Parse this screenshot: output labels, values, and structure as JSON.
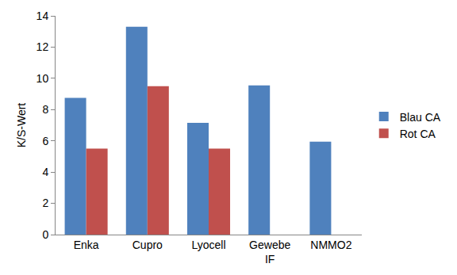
{
  "chart_data": {
    "type": "bar",
    "categories": [
      "Enka",
      "Cupro",
      "Lyocell",
      "Gewebe IF",
      "NMMO2"
    ],
    "series": [
      {
        "name": "Blau CA",
        "color": "#4f81bd",
        "values": [
          8.75,
          13.3,
          7.15,
          9.55,
          5.95
        ]
      },
      {
        "name": "Rot CA",
        "color": "#c0504d",
        "values": [
          5.5,
          9.5,
          5.5,
          null,
          null
        ]
      }
    ],
    "y_label": "K/S-Wert",
    "ylim": [
      0,
      14
    ],
    "yticks": [
      0,
      2,
      4,
      6,
      8,
      10,
      12,
      14
    ],
    "grid": false,
    "legend": "right"
  }
}
